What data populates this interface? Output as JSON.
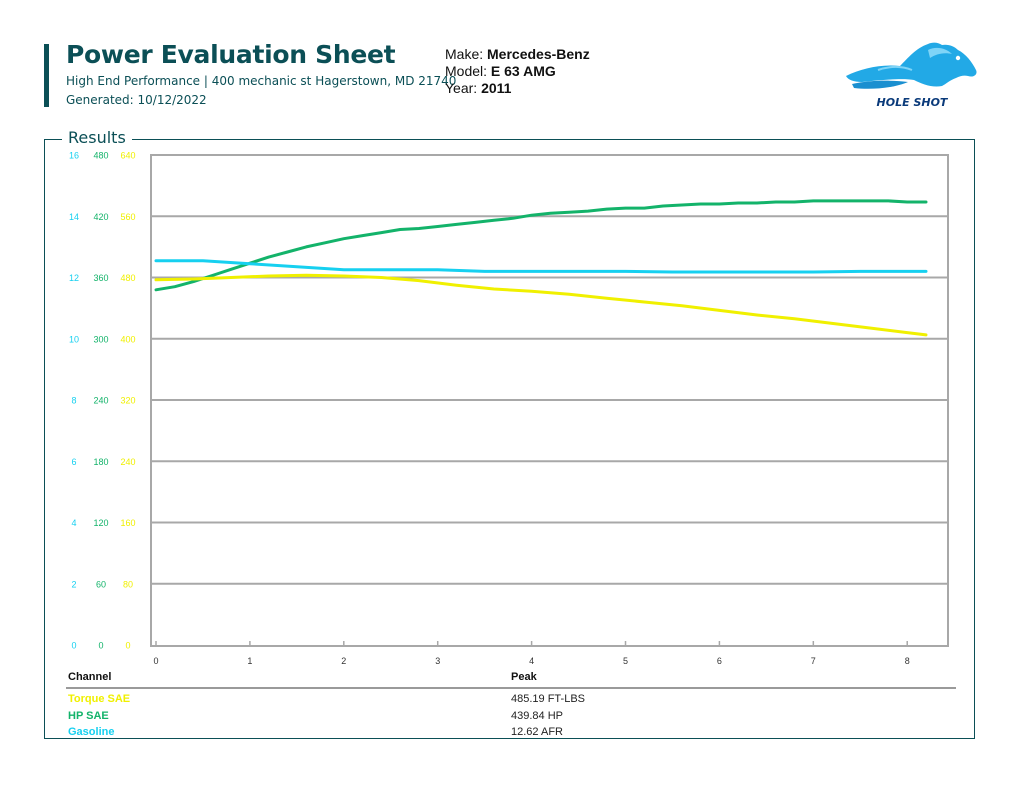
{
  "header": {
    "title": "Power Evaluation Sheet",
    "subtitle": "High End Performance | 400 mechanic st Hagerstown, MD 21740",
    "generated": "Generated: 10/12/2022"
  },
  "vehicle": {
    "make_label": "Make:",
    "make": "Mercedes-Benz",
    "model_label": "Model:",
    "model": "E 63 AMG",
    "year_label": "Year:",
    "year": "2011"
  },
  "logo": {
    "text": "HOLE SHOT",
    "icon": "horse-head-icon"
  },
  "results": {
    "label": "Results",
    "table": {
      "headers": {
        "channel": "Channel",
        "peak": "Peak"
      },
      "rows": [
        {
          "channel": "Torque SAE",
          "peak": "485.19 FT-LBS",
          "color": "#f0f000"
        },
        {
          "channel": "HP SAE",
          "peak": "439.84 HP",
          "color": "#13b36a"
        },
        {
          "channel": "Gasoline",
          "peak": "12.62 AFR",
          "color": "#16d0f0"
        }
      ]
    }
  },
  "chart_data": {
    "type": "line",
    "xlabel": "",
    "xlim": [
      0,
      8.2
    ],
    "x_ticks": [
      "0",
      "1",
      "2",
      "3",
      "4",
      "5",
      "6",
      "7",
      "8"
    ],
    "grid": true,
    "axes": [
      {
        "color": "#16d0f0",
        "range": [
          0,
          16
        ],
        "ticks": [
          "0",
          "2",
          "4",
          "6",
          "8",
          "10",
          "12",
          "14",
          "16"
        ]
      },
      {
        "color": "#13b36a",
        "range": [
          0,
          480
        ],
        "ticks": [
          "0",
          "60",
          "120",
          "180",
          "240",
          "300",
          "360",
          "420",
          "480"
        ]
      },
      {
        "color": "#f0f000",
        "range": [
          0,
          640
        ],
        "ticks": [
          "0",
          "80",
          "160",
          "240",
          "320",
          "400",
          "480",
          "560",
          "640"
        ]
      }
    ],
    "series": [
      {
        "name": "HP SAE",
        "color": "#13b36a",
        "axis": 1,
        "x": [
          0,
          0.2,
          0.4,
          0.6,
          0.8,
          1.0,
          1.2,
          1.4,
          1.6,
          1.8,
          2.0,
          2.2,
          2.4,
          2.6,
          2.8,
          3.0,
          3.2,
          3.4,
          3.6,
          3.8,
          4.0,
          4.2,
          4.4,
          4.6,
          4.8,
          5.0,
          5.2,
          5.4,
          5.6,
          5.8,
          6.0,
          6.2,
          6.4,
          6.6,
          6.8,
          7.0,
          7.2,
          7.4,
          7.6,
          7.8,
          8.0,
          8.2
        ],
        "y": [
          348,
          351,
          356,
          362,
          368,
          374,
          380,
          385,
          390,
          394,
          398,
          401,
          404,
          407,
          408,
          410,
          412,
          414,
          416,
          418,
          421,
          423,
          424,
          425,
          427,
          428,
          428,
          430,
          431,
          432,
          432,
          433,
          433,
          434,
          434,
          435,
          435,
          435,
          435,
          435,
          434,
          434
        ]
      },
      {
        "name": "Torque SAE",
        "color": "#f0f000",
        "axis": 2,
        "x": [
          0,
          0.4,
          0.8,
          1.2,
          1.6,
          2.0,
          2.4,
          2.8,
          3.2,
          3.6,
          4.0,
          4.4,
          4.8,
          5.2,
          5.6,
          6.0,
          6.4,
          6.8,
          7.2,
          7.6,
          8.0,
          8.2
        ],
        "y": [
          477,
          478,
          480,
          482,
          483,
          482,
          480,
          476,
          470,
          465,
          462,
          458,
          453,
          448,
          443,
          437,
          431,
          426,
          420,
          414,
          408,
          405
        ]
      },
      {
        "name": "Gasoline",
        "color": "#16d0f0",
        "axis": 0,
        "x": [
          0,
          0.5,
          1.0,
          1.5,
          2.0,
          2.5,
          3.0,
          3.5,
          4.0,
          4.5,
          5.0,
          5.5,
          6.0,
          6.5,
          7.0,
          7.5,
          8.0,
          8.2
        ],
        "y": [
          12.55,
          12.55,
          12.45,
          12.35,
          12.25,
          12.25,
          12.25,
          12.2,
          12.2,
          12.2,
          12.2,
          12.18,
          12.18,
          12.18,
          12.18,
          12.2,
          12.2,
          12.2
        ]
      }
    ]
  }
}
